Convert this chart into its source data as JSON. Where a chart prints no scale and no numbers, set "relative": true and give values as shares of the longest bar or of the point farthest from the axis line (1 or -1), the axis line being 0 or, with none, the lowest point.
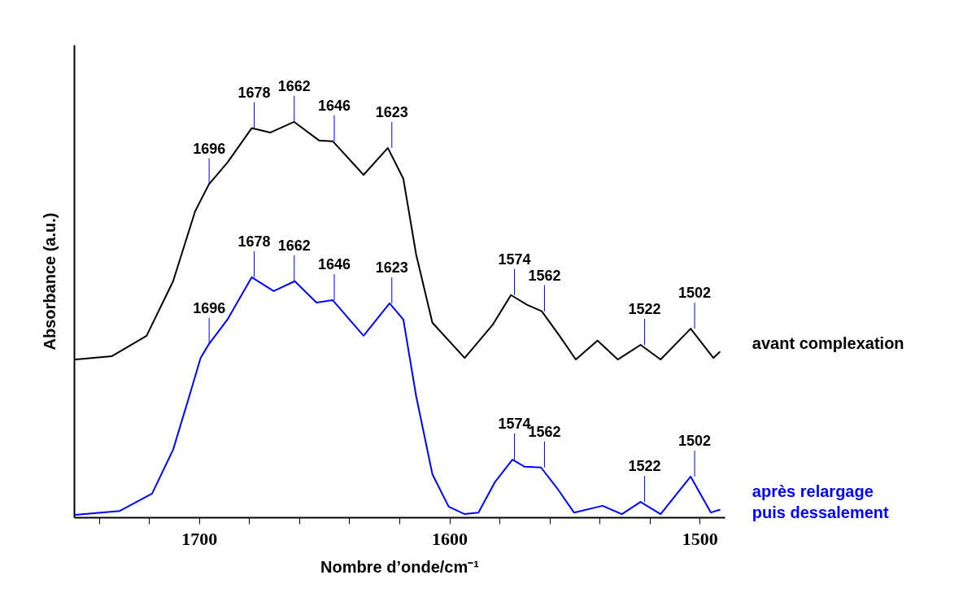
{
  "chart_data": {
    "type": "line",
    "xlabel": "Nombre d’onde/cm⁻¹",
    "ylabel": "Absorbance (a.u.)",
    "relative": true,
    "xlim": [
      1750,
      1490
    ],
    "xticks": [
      {
        "value": 1740,
        "label": null
      },
      {
        "value": 1720,
        "label": null
      },
      1700,
      {
        "value": 1680,
        "label": null
      },
      {
        "value": 1660,
        "label": null
      },
      {
        "value": 1640,
        "label": null
      },
      {
        "value": 1620,
        "label": null
      },
      1600,
      {
        "value": 1580,
        "label": null
      },
      {
        "value": 1560,
        "label": null
      },
      {
        "value": 1540,
        "label": null
      },
      {
        "value": 1520,
        "label": null
      },
      1500
    ],
    "series": [
      {
        "name": "avant complexation",
        "color": "#000000",
        "x": [
          1749.5,
          1735.0,
          1721.0,
          1710.4,
          1701.6,
          1696.1,
          1688.7,
          1679.0,
          1671.5,
          1662.1,
          1652.1,
          1646.6,
          1634.3,
          1624.6,
          1618.4,
          1613.3,
          1606.8,
          1593.9,
          1582.8,
          1575.4,
          1568.9,
          1563.1,
          1556.0,
          1549.5,
          1540.8,
          1532.7,
          1523.6,
          1515.6,
          1503.6,
          1494.5,
          1492.0
        ],
        "values": [
          0.399,
          0.407,
          0.459,
          0.597,
          0.774,
          0.842,
          0.897,
          0.984,
          0.973,
          1.0,
          0.953,
          0.951,
          0.866,
          0.934,
          0.856,
          0.665,
          0.492,
          0.403,
          0.486,
          0.562,
          0.537,
          0.521,
          0.459,
          0.399,
          0.447,
          0.399,
          0.436,
          0.399,
          0.477,
          0.403,
          0.418
        ]
      },
      {
        "name": "après relargage puis dessalement",
        "color": "#0000ff",
        "x": [
          1749.5,
          1731.7,
          1718.8,
          1710.4,
          1703.9,
          1699.4,
          1696.1,
          1688.7,
          1679.0,
          1670.2,
          1661.8,
          1653.1,
          1646.6,
          1634.3,
          1623.9,
          1618.4,
          1613.3,
          1606.8,
          1600.3,
          1593.9,
          1588.4,
          1581.9,
          1574.8,
          1569.9,
          1563.4,
          1557.0,
          1550.2,
          1538.8,
          1531.1,
          1523.6,
          1515.6,
          1503.6,
          1495.5,
          1492.0
        ],
        "values": [
          0.006,
          0.016,
          0.06,
          0.171,
          0.307,
          0.403,
          0.438,
          0.5,
          0.607,
          0.572,
          0.597,
          0.543,
          0.549,
          0.459,
          0.541,
          0.5,
          0.307,
          0.109,
          0.027,
          0.008,
          0.012,
          0.088,
          0.146,
          0.128,
          0.126,
          0.074,
          0.012,
          0.029,
          0.008,
          0.039,
          0.008,
          0.103,
          0.012,
          0.019
        ]
      }
    ],
    "annotations": [
      {
        "text": "1696",
        "x": 1696,
        "y": 0.842
      },
      {
        "text": "1678",
        "x": 1678,
        "y": 0.984
      },
      {
        "text": "1662",
        "x": 1662,
        "y": 1.0
      },
      {
        "text": "1646",
        "x": 1646,
        "y": 0.951
      },
      {
        "text": "1623",
        "x": 1623,
        "y": 0.934
      },
      {
        "text": "1574",
        "x": 1574,
        "y": 0.562
      },
      {
        "text": "1562",
        "x": 1562,
        "y": 0.521
      },
      {
        "text": "1522",
        "x": 1522,
        "y": 0.436
      },
      {
        "text": "1502",
        "x": 1502,
        "y": 0.477
      },
      {
        "text": "1696",
        "x": 1696,
        "y": 0.438
      },
      {
        "text": "1678",
        "x": 1678,
        "y": 0.607
      },
      {
        "text": "1662",
        "x": 1662,
        "y": 0.597
      },
      {
        "text": "1646",
        "x": 1646,
        "y": 0.549
      },
      {
        "text": "1623",
        "x": 1623,
        "y": 0.541
      },
      {
        "text": "1574",
        "x": 1574,
        "y": 0.146
      },
      {
        "text": "1562",
        "x": 1562,
        "y": 0.126
      },
      {
        "text": "1522",
        "x": 1522,
        "y": 0.039
      },
      {
        "text": "1502",
        "x": 1502,
        "y": 0.103
      }
    ]
  }
}
